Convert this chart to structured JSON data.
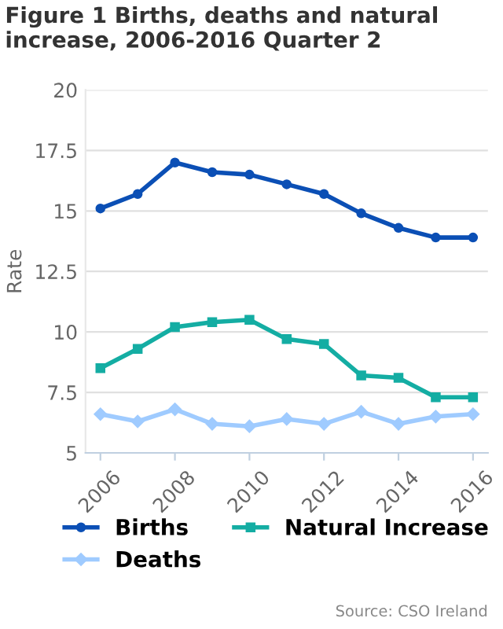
{
  "chart_data": {
    "type": "line",
    "title": "Figure 1 Births, deaths and natural increase, 2006-2016 Quarter 2",
    "ylabel": "Rate",
    "x": [
      2006,
      2007,
      2008,
      2009,
      2010,
      2011,
      2012,
      2013,
      2014,
      2015,
      2016
    ],
    "series": [
      {
        "name": "Births",
        "color": "#0b4fb5",
        "marker": "circle",
        "values": [
          15.1,
          15.7,
          17.0,
          16.6,
          16.5,
          16.1,
          15.7,
          14.9,
          14.3,
          13.9,
          13.9
        ]
      },
      {
        "name": "Deaths",
        "color": "#9fcbff",
        "marker": "diamond",
        "values": [
          6.6,
          6.3,
          6.8,
          6.2,
          6.1,
          6.4,
          6.2,
          6.7,
          6.2,
          6.5,
          6.6
        ]
      },
      {
        "name": "Natural Increase",
        "color": "#14ada3",
        "marker": "square",
        "values": [
          8.5,
          9.3,
          10.2,
          10.4,
          10.5,
          9.7,
          9.5,
          8.2,
          8.1,
          7.3,
          7.3
        ]
      }
    ],
    "xlim": [
      2005.6,
      2016.4
    ],
    "xticks": [
      2006,
      2008,
      2010,
      2012,
      2014,
      2016
    ],
    "ylim": [
      5,
      20
    ],
    "yticks": [
      5,
      7.5,
      10,
      12.5,
      15,
      17.5,
      20
    ],
    "grid": "y",
    "legend": "bottom",
    "line_style": "solid",
    "annotations": [
      "Source: CSO Ireland"
    ]
  }
}
